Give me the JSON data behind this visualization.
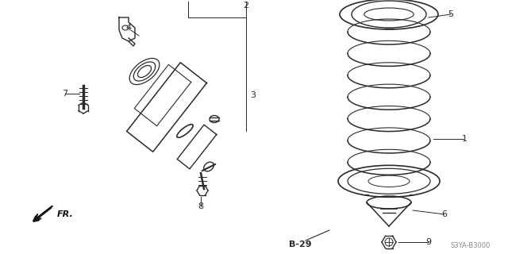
{
  "bg_color": "#ffffff",
  "line_color": "#2a2a2a",
  "fig_width": 6.4,
  "fig_height": 3.2,
  "dpi": 100,
  "watermark": "S3YA-B3000",
  "page_ref": "B-29"
}
